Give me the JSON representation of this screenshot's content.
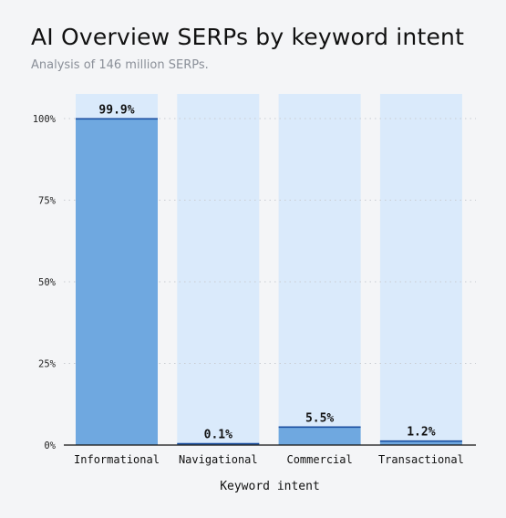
{
  "chart_data": {
    "type": "bar",
    "title": "AI Overview SERPs by keyword intent",
    "subtitle": "Analysis of 146 million SERPs.",
    "xlabel": "Keyword intent",
    "ylabel": "",
    "categories": [
      "Informational",
      "Navigational",
      "Commercial",
      "Transactional"
    ],
    "values": [
      99.9,
      0.1,
      5.5,
      1.2
    ],
    "value_labels": [
      "99.9%",
      "0.1%",
      "5.5%",
      "1.2%"
    ],
    "ylim": [
      0,
      100
    ],
    "yticks": [
      0,
      25,
      50,
      75,
      100
    ],
    "ytick_labels": [
      "0%",
      "25%",
      "50%",
      "75%",
      "100%"
    ],
    "grid": "horizontal-dotted",
    "colors": {
      "bar": "#6fa8e0",
      "bar_background": "#daeafb",
      "bar_top_line": "#1a4fa0",
      "grid": "#c9ccd1",
      "axis": "#111111"
    }
  }
}
